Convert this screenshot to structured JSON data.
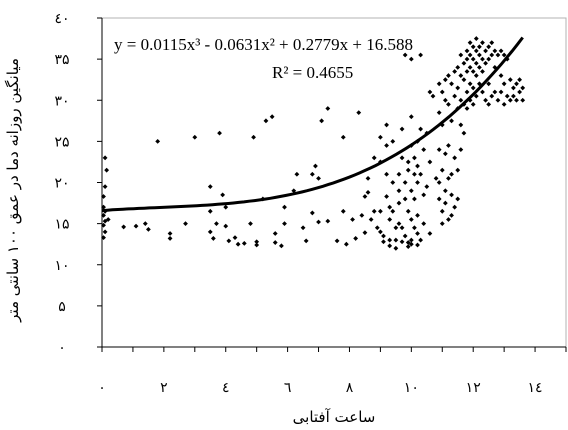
{
  "chart_data": {
    "type": "scatter",
    "title": "",
    "xlabel": "ساعت آفتابی",
    "ylabel": "میانگین روزانه دما در عمق ۱۰۰ سانتی متر",
    "xlim": [
      0,
      15
    ],
    "ylim": [
      0,
      40
    ],
    "x_ticks": [
      0,
      2,
      4,
      6,
      8,
      10,
      12,
      14
    ],
    "x_tick_labels": [
      "۰",
      "۲",
      "٤",
      "٦",
      "٨",
      "۱۰",
      "۱۲",
      "۱٤"
    ],
    "y_ticks": [
      0,
      5,
      10,
      15,
      20,
      25,
      30,
      35,
      40
    ],
    "y_tick_labels": [
      "۰",
      "۵",
      "۱۰",
      "۱۵",
      "۲۰",
      "۲۵",
      "۳۰",
      "۳۵",
      "٤۰"
    ],
    "grid": false,
    "marker_color": "#000000",
    "trendline": {
      "type": "polynomial",
      "coefficients": [
        0.0115,
        -0.0631,
        0.2779,
        16.588
      ],
      "x_range": [
        0,
        13.6
      ],
      "color": "#000000"
    },
    "annotations": [
      {
        "text": "y = 0.0115x³ - 0.0631x² + 0.2779x + 16.588"
      },
      {
        "text": "R² = 0.4655"
      }
    ],
    "points": [
      [
        0.05,
        18.3
      ],
      [
        0.05,
        17.0
      ],
      [
        0.1,
        16.5
      ],
      [
        0.05,
        16.0
      ],
      [
        0.1,
        15.3
      ],
      [
        0.05,
        14.8
      ],
      [
        0.1,
        14.0
      ],
      [
        0.05,
        13.3
      ],
      [
        0.1,
        19.5
      ],
      [
        0.15,
        21.5
      ],
      [
        0.1,
        23.0
      ],
      [
        0.2,
        15.5
      ],
      [
        0.7,
        14.6
      ],
      [
        1.1,
        14.7
      ],
      [
        1.4,
        15.0
      ],
      [
        1.5,
        14.3
      ],
      [
        1.8,
        25.0
      ],
      [
        2.2,
        13.8
      ],
      [
        2.2,
        13.2
      ],
      [
        2.7,
        15.0
      ],
      [
        3.0,
        25.5
      ],
      [
        3.5,
        19.5
      ],
      [
        3.5,
        16.5
      ],
      [
        3.5,
        14.0
      ],
      [
        3.6,
        13.2
      ],
      [
        3.7,
        15.0
      ],
      [
        3.8,
        26.0
      ],
      [
        3.9,
        18.5
      ],
      [
        4.0,
        17.0
      ],
      [
        4.0,
        14.7
      ],
      [
        4.1,
        12.9
      ],
      [
        4.3,
        13.3
      ],
      [
        4.4,
        12.5
      ],
      [
        4.6,
        12.6
      ],
      [
        4.8,
        15.0
      ],
      [
        4.9,
        25.5
      ],
      [
        5.0,
        12.8
      ],
      [
        5.0,
        12.4
      ],
      [
        5.2,
        18.0
      ],
      [
        5.3,
        27.5
      ],
      [
        5.5,
        28.0
      ],
      [
        5.6,
        13.8
      ],
      [
        5.6,
        12.7
      ],
      [
        5.8,
        12.3
      ],
      [
        5.9,
        17.0
      ],
      [
        5.9,
        15.0
      ],
      [
        6.2,
        19.0
      ],
      [
        6.3,
        21.0
      ],
      [
        6.5,
        14.5
      ],
      [
        6.6,
        12.9
      ],
      [
        6.8,
        21.0
      ],
      [
        6.8,
        16.3
      ],
      [
        6.9,
        22.0
      ],
      [
        7.0,
        20.5
      ],
      [
        7.0,
        15.2
      ],
      [
        7.1,
        27.5
      ],
      [
        7.3,
        29.0
      ],
      [
        7.3,
        15.3
      ],
      [
        7.6,
        12.9
      ],
      [
        7.8,
        25.5
      ],
      [
        7.8,
        16.5
      ],
      [
        7.9,
        12.5
      ],
      [
        8.1,
        15.5
      ],
      [
        8.2,
        13.2
      ],
      [
        8.3,
        28.5
      ],
      [
        8.4,
        16.0
      ],
      [
        8.5,
        13.9
      ],
      [
        8.5,
        18.3
      ],
      [
        8.6,
        20.5
      ],
      [
        8.6,
        18.8
      ],
      [
        8.7,
        15.5
      ],
      [
        8.8,
        23.0
      ],
      [
        8.8,
        16.5
      ],
      [
        8.9,
        14.5
      ],
      [
        9.0,
        25.5
      ],
      [
        9.0,
        22.5
      ],
      [
        9.0,
        16.5
      ],
      [
        9.0,
        14.0
      ],
      [
        9.1,
        13.5
      ],
      [
        9.1,
        12.8
      ],
      [
        9.2,
        27.0
      ],
      [
        9.2,
        24.5
      ],
      [
        9.2,
        21.0
      ],
      [
        9.2,
        18.3
      ],
      [
        9.3,
        17.0
      ],
      [
        9.3,
        15.5
      ],
      [
        9.3,
        13.0
      ],
      [
        9.3,
        12.3
      ],
      [
        9.4,
        25.0
      ],
      [
        9.4,
        20.0
      ],
      [
        9.4,
        16.5
      ],
      [
        9.5,
        14.5
      ],
      [
        9.5,
        13.0
      ],
      [
        9.5,
        12.0
      ],
      [
        9.6,
        21.0
      ],
      [
        9.6,
        19.0
      ],
      [
        9.6,
        17.5
      ],
      [
        9.6,
        15.0
      ],
      [
        9.7,
        26.5
      ],
      [
        9.7,
        23.0
      ],
      [
        9.7,
        14.5
      ],
      [
        9.7,
        12.8
      ],
      [
        9.8,
        35.5
      ],
      [
        9.8,
        20.0
      ],
      [
        9.8,
        18.0
      ],
      [
        9.8,
        13.5
      ],
      [
        9.9,
        22.5
      ],
      [
        9.9,
        21.5
      ],
      [
        9.9,
        16.5
      ],
      [
        9.9,
        12.7
      ],
      [
        9.9,
        12.2
      ],
      [
        10.0,
        35.0
      ],
      [
        10.0,
        28.0
      ],
      [
        10.0,
        24.5
      ],
      [
        10.0,
        19.0
      ],
      [
        10.0,
        15.5
      ],
      [
        10.0,
        13.0
      ],
      [
        10.0,
        12.5
      ],
      [
        10.1,
        23.0
      ],
      [
        10.1,
        21.0
      ],
      [
        10.1,
        18.0
      ],
      [
        10.1,
        14.5
      ],
      [
        10.2,
        25.0
      ],
      [
        10.2,
        22.0
      ],
      [
        10.2,
        20.0
      ],
      [
        10.2,
        16.0
      ],
      [
        10.2,
        13.8
      ],
      [
        10.2,
        12.4
      ],
      [
        10.3,
        35.5
      ],
      [
        10.3,
        26.5
      ],
      [
        10.3,
        21.0
      ],
      [
        10.3,
        13.0
      ],
      [
        10.4,
        24.0
      ],
      [
        10.4,
        18.5
      ],
      [
        10.4,
        15.0
      ],
      [
        10.5,
        26.0
      ],
      [
        10.5,
        19.5
      ],
      [
        10.6,
        31.0
      ],
      [
        10.6,
        22.5
      ],
      [
        10.6,
        13.8
      ],
      [
        10.7,
        30.5
      ],
      [
        10.8,
        20.5
      ],
      [
        10.9,
        32.0
      ],
      [
        10.9,
        28.5
      ],
      [
        10.9,
        24.0
      ],
      [
        10.9,
        20.0
      ],
      [
        10.9,
        18.0
      ],
      [
        11.0,
        31.0
      ],
      [
        11.0,
        27.0
      ],
      [
        11.0,
        21.5
      ],
      [
        11.0,
        16.5
      ],
      [
        11.0,
        15.0
      ],
      [
        11.1,
        32.5
      ],
      [
        11.1,
        30.0
      ],
      [
        11.1,
        23.5
      ],
      [
        11.1,
        19.0
      ],
      [
        11.1,
        17.5
      ],
      [
        11.2,
        33.0
      ],
      [
        11.2,
        29.5
      ],
      [
        11.2,
        24.5
      ],
      [
        11.2,
        20.5
      ],
      [
        11.2,
        15.5
      ],
      [
        11.3,
        32.0
      ],
      [
        11.3,
        27.5
      ],
      [
        11.3,
        21.0
      ],
      [
        11.3,
        18.5
      ],
      [
        11.3,
        16.0
      ],
      [
        11.4,
        33.5
      ],
      [
        11.4,
        30.5
      ],
      [
        11.4,
        23.0
      ],
      [
        11.4,
        17.0
      ],
      [
        11.5,
        34.0
      ],
      [
        11.5,
        31.5
      ],
      [
        11.5,
        29.0
      ],
      [
        11.5,
        21.5
      ],
      [
        11.5,
        18.0
      ],
      [
        11.6,
        35.5
      ],
      [
        11.6,
        33.0
      ],
      [
        11.6,
        30.0
      ],
      [
        11.6,
        27.0
      ],
      [
        11.6,
        24.0
      ],
      [
        11.7,
        34.5
      ],
      [
        11.7,
        32.5
      ],
      [
        11.7,
        29.5
      ],
      [
        11.7,
        26.0
      ],
      [
        11.8,
        36.0
      ],
      [
        11.8,
        35.0
      ],
      [
        11.8,
        33.5
      ],
      [
        11.8,
        31.0
      ],
      [
        11.8,
        29.0
      ],
      [
        11.9,
        37.0
      ],
      [
        11.9,
        35.5
      ],
      [
        11.9,
        34.0
      ],
      [
        11.9,
        32.0
      ],
      [
        11.9,
        30.0
      ],
      [
        12.0,
        36.5
      ],
      [
        12.0,
        35.0
      ],
      [
        12.0,
        33.5
      ],
      [
        12.0,
        31.5
      ],
      [
        12.0,
        29.5
      ],
      [
        12.1,
        37.5
      ],
      [
        12.1,
        36.0
      ],
      [
        12.1,
        34.5
      ],
      [
        12.1,
        33.0
      ],
      [
        12.1,
        30.5
      ],
      [
        12.2,
        36.5
      ],
      [
        12.2,
        35.5
      ],
      [
        12.2,
        34.0
      ],
      [
        12.2,
        32.0
      ],
      [
        12.3,
        37.0
      ],
      [
        12.3,
        35.0
      ],
      [
        12.3,
        33.5
      ],
      [
        12.3,
        31.0
      ],
      [
        12.4,
        36.0
      ],
      [
        12.4,
        34.5
      ],
      [
        12.4,
        30.0
      ],
      [
        12.5,
        36.5
      ],
      [
        12.5,
        35.0
      ],
      [
        12.5,
        32.0
      ],
      [
        12.5,
        29.5
      ],
      [
        12.6,
        37.0
      ],
      [
        12.6,
        35.5
      ],
      [
        12.6,
        30.5
      ],
      [
        12.7,
        36.0
      ],
      [
        12.7,
        34.0
      ],
      [
        12.7,
        31.0
      ],
      [
        12.8,
        35.5
      ],
      [
        12.8,
        30.0
      ],
      [
        12.9,
        36.0
      ],
      [
        12.9,
        33.0
      ],
      [
        12.9,
        31.0
      ],
      [
        13.0,
        35.5
      ],
      [
        13.0,
        32.0
      ],
      [
        13.0,
        29.5
      ],
      [
        13.1,
        35.0
      ],
      [
        13.1,
        30.5
      ],
      [
        13.2,
        32.5
      ],
      [
        13.2,
        30.0
      ],
      [
        13.3,
        31.5
      ],
      [
        13.3,
        30.5
      ],
      [
        13.4,
        32.0
      ],
      [
        13.4,
        30.0
      ],
      [
        13.5,
        31.0
      ],
      [
        13.5,
        32.5
      ],
      [
        13.6,
        30.0
      ],
      [
        13.6,
        31.5
      ]
    ]
  }
}
